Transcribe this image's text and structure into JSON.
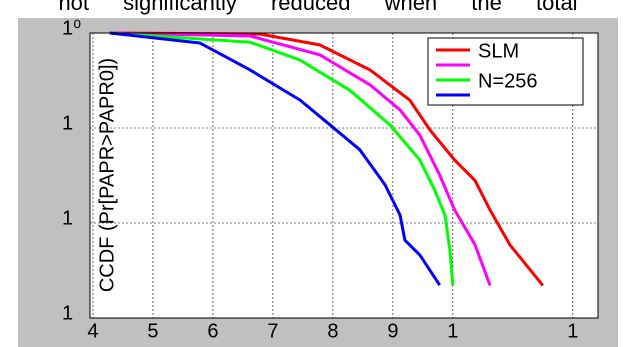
{
  "caption": "not significantly reduced when the total",
  "chart_data": {
    "type": "line",
    "ylabel": "CCDF  (Pr[PAPR>PAPR0])",
    "xlim": [
      3.95,
      12.42
    ],
    "ylim": [
      0.001,
      1
    ],
    "ylog": true,
    "grid": true,
    "legend": "upper right",
    "xticks": [
      4,
      5,
      6,
      7,
      8,
      9,
      {
        "value": 10,
        "label": "1"
      },
      {
        "value": 12,
        "label": "1"
      }
    ],
    "yticks": [
      {
        "value": 0.001,
        "label": "1"
      },
      {
        "value": 0.01,
        "label": "1"
      },
      {
        "value": 0.1,
        "label": "1"
      },
      {
        "value": 1,
        "label": "1⁰"
      }
    ],
    "series": [
      {
        "name": "SLM",
        "color": "#ff0000",
        "x": [
          4.28,
          6.78,
          7.78,
          8.62,
          9.28,
          9.62,
          10.03,
          10.37,
          10.62,
          10.95,
          11.5
        ],
        "values": [
          1,
          0.976,
          0.75,
          0.408,
          0.197,
          0.095,
          0.046,
          0.028,
          0.0137,
          0.0059,
          0.0022
        ]
      },
      {
        "color": "#ff00ff",
        "x": [
          4.28,
          6.62,
          7.78,
          8.62,
          9.12,
          9.45,
          9.78,
          10.03,
          10.37,
          10.62
        ],
        "values": [
          1,
          0.93,
          0.59,
          0.284,
          0.155,
          0.084,
          0.032,
          0.0137,
          0.0059,
          0.0022
        ]
      },
      {
        "name": "N=256",
        "color": "#00ff00",
        "x": [
          4.28,
          6.62,
          7.45,
          8.28,
          8.95,
          9.45,
          9.7,
          9.87,
          9.95,
          10.0
        ],
        "values": [
          1,
          0.8,
          0.52,
          0.25,
          0.108,
          0.046,
          0.022,
          0.012,
          0.0052,
          0.0022
        ]
      },
      {
        "color": "#0000ff",
        "x": [
          4.28,
          5.78,
          6.62,
          7.45,
          7.95,
          8.45,
          8.87,
          9.12,
          9.2,
          9.45,
          9.78
        ],
        "values": [
          1,
          0.785,
          0.408,
          0.197,
          0.108,
          0.0589,
          0.0252,
          0.0121,
          0.0066,
          0.0046,
          0.00222
        ]
      }
    ]
  }
}
